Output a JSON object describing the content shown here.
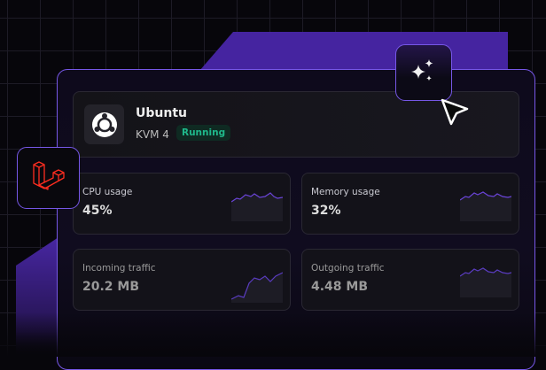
{
  "vm": {
    "name": "Ubuntu",
    "plan": "KVM 4",
    "status": "Running",
    "os_icon": "ubuntu-logo-icon"
  },
  "stats": [
    {
      "label": "CPU usage",
      "value": "45%"
    },
    {
      "label": "Memory usage",
      "value": "32%"
    },
    {
      "label": "Incoming traffic",
      "value": "20.2 MB"
    },
    {
      "label": "Outgoing traffic",
      "value": "4.48 MB"
    }
  ],
  "icons": {
    "framework": "laravel-logo-icon",
    "ai": "sparkles-icon",
    "pointer": "cursor-icon"
  },
  "colors": {
    "accent": "#7657e6",
    "status": "#1fb88a",
    "laravel": "#ff2d20"
  }
}
